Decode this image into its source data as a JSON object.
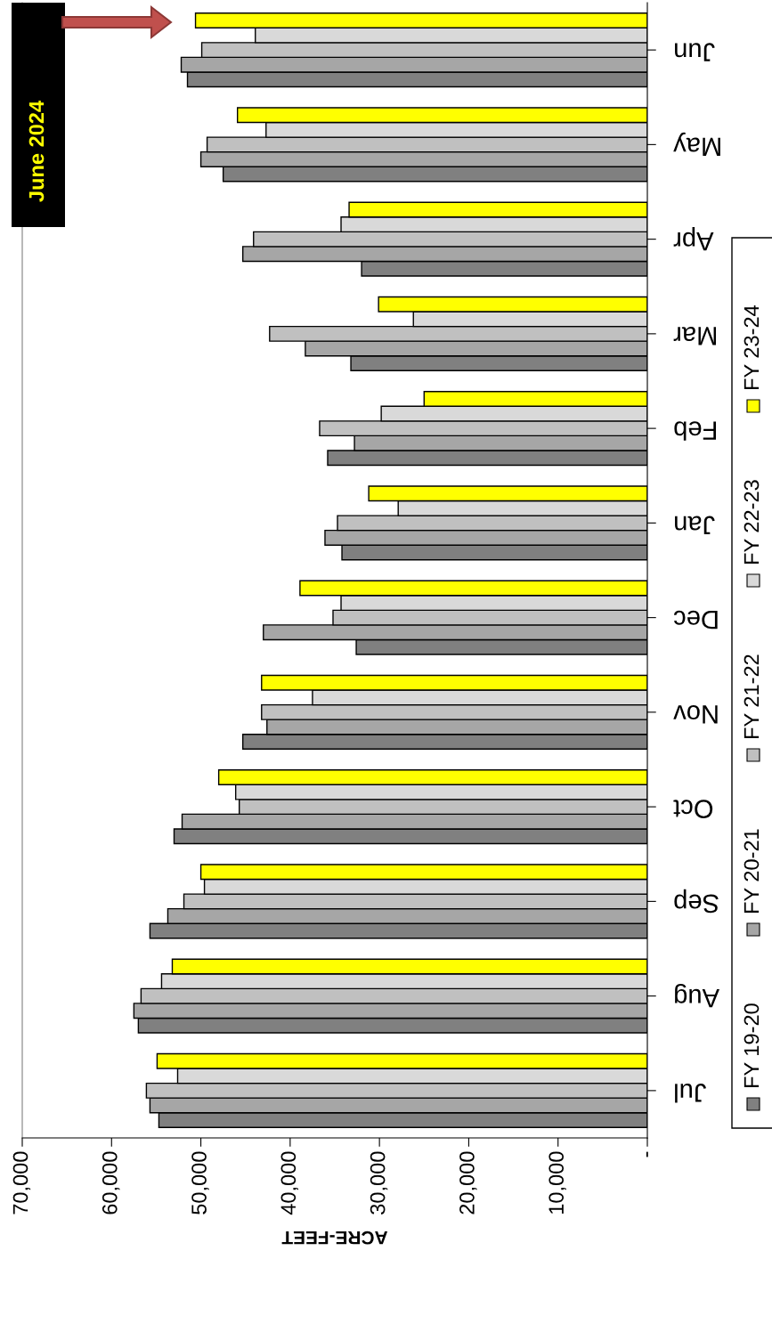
{
  "chart_data": {
    "type": "bar",
    "orientation": "horizontal",
    "title": "June 2024",
    "xlabel": "ACRE-FEET",
    "categories": [
      "Jun",
      "May",
      "Apr",
      "Mar",
      "Feb",
      "Jan",
      "Dec",
      "Nov",
      "Oct",
      "Sep",
      "Aug",
      "Jul"
    ],
    "series": [
      {
        "name": "FY 19-20",
        "color": "#808080",
        "values": [
          51500,
          47500,
          32000,
          33200,
          35800,
          34200,
          32600,
          45300,
          53000,
          55700,
          57000,
          54700
        ]
      },
      {
        "name": "FY 20-21",
        "color": "#a6a6a6",
        "values": [
          52200,
          50000,
          45300,
          38300,
          32800,
          36100,
          43000,
          42600,
          52100,
          53700,
          57500,
          55700
        ]
      },
      {
        "name": "FY 21-22",
        "color": "#c0c0c0",
        "values": [
          49900,
          49300,
          44100,
          42300,
          36700,
          34700,
          35200,
          43200,
          45700,
          51900,
          56700,
          56100
        ]
      },
      {
        "name": "FY 22-23",
        "color": "#d9d9d9",
        "values": [
          43900,
          42700,
          34300,
          26200,
          29800,
          27900,
          34300,
          37500,
          46100,
          49600,
          54400,
          52600
        ]
      },
      {
        "name": "FY 23-24",
        "color": "#ffff00",
        "values": [
          50600,
          45900,
          33400,
          30100,
          25000,
          31200,
          38900,
          43200,
          48000,
          50000,
          53200,
          54900
        ]
      }
    ],
    "xlim": [
      70000,
      0
    ],
    "xticks": [
      {
        "value": 70000,
        "label": "70,000"
      },
      {
        "value": 60000,
        "label": "60,000"
      },
      {
        "value": 50000,
        "label": "50,000"
      },
      {
        "value": 40000,
        "label": "40,000"
      },
      {
        "value": 30000,
        "label": "30,000"
      },
      {
        "value": 20000,
        "label": "20,000"
      },
      {
        "value": 10000,
        "label": "10,000"
      },
      {
        "value": 0,
        "label": "-"
      }
    ],
    "grid": false,
    "legend": "right"
  }
}
